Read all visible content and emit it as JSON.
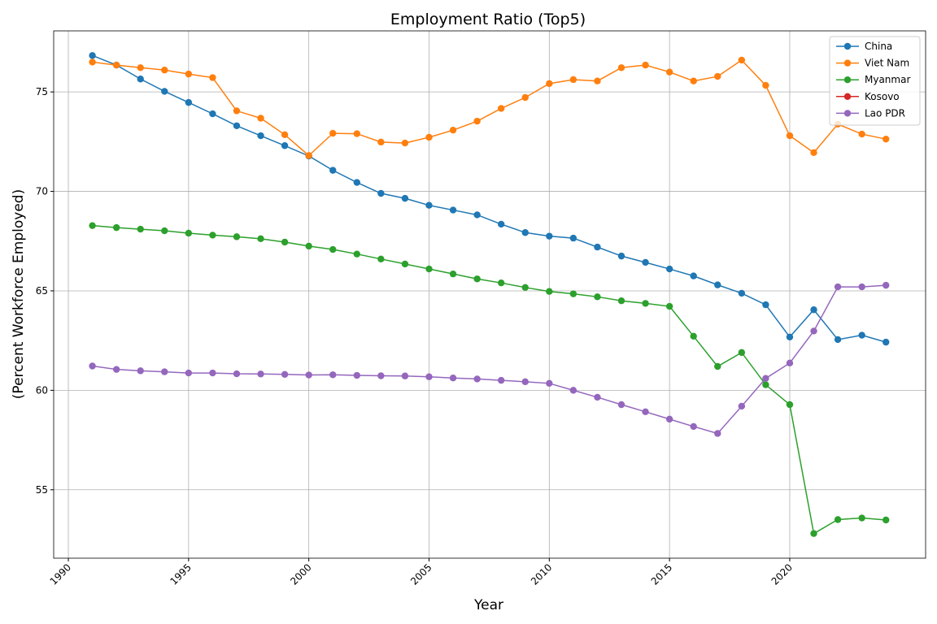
{
  "chart_data": {
    "type": "line",
    "title": "Employment Ratio (Top5)",
    "xlabel": "Year",
    "ylabel": "(Percent Workforce Employed)",
    "x": [
      1991,
      1992,
      1993,
      1994,
      1995,
      1996,
      1997,
      1998,
      1999,
      2000,
      2001,
      2002,
      2003,
      2004,
      2005,
      2006,
      2007,
      2008,
      2009,
      2010,
      2011,
      2012,
      2013,
      2014,
      2015,
      2016,
      2017,
      2018,
      2019,
      2020,
      2021,
      2022,
      2023,
      2024
    ],
    "series": [
      {
        "name": "China",
        "color": "#1f77b4",
        "values": [
          76.83,
          76.35,
          75.65,
          75.03,
          74.47,
          73.9,
          73.3,
          72.8,
          72.3,
          71.78,
          71.06,
          70.45,
          69.9,
          69.65,
          69.3,
          69.06,
          68.82,
          68.35,
          67.93,
          67.75,
          67.65,
          67.2,
          66.75,
          66.43,
          66.1,
          65.75,
          65.3,
          64.88,
          64.3,
          62.68,
          64.05,
          62.55,
          62.77,
          62.42
        ]
      },
      {
        "name": "Viet Nam",
        "color": "#ff7f0e",
        "values": [
          76.5,
          76.35,
          76.22,
          76.1,
          75.9,
          75.72,
          74.05,
          73.68,
          72.85,
          71.8,
          72.92,
          72.9,
          72.48,
          72.43,
          72.72,
          73.08,
          73.53,
          74.17,
          74.72,
          75.42,
          75.62,
          75.55,
          76.22,
          76.35,
          76.0,
          75.55,
          75.78,
          76.6,
          75.33,
          72.8,
          71.95,
          73.38,
          72.88,
          72.63
        ]
      },
      {
        "name": "Myanmar",
        "color": "#2ca02c",
        "values": [
          68.28,
          68.18,
          68.1,
          68.02,
          67.9,
          67.8,
          67.72,
          67.62,
          67.45,
          67.25,
          67.08,
          66.85,
          66.6,
          66.35,
          66.1,
          65.85,
          65.6,
          65.4,
          65.17,
          64.97,
          64.85,
          64.7,
          64.5,
          64.37,
          64.22,
          62.72,
          61.2,
          61.9,
          60.28,
          59.28,
          52.8,
          53.5,
          53.58,
          53.48
        ]
      },
      {
        "name": "Kosovo",
        "color": "#d62728",
        "values": [
          null,
          null,
          null,
          null,
          null,
          null,
          null,
          null,
          null,
          null,
          null,
          null,
          null,
          null,
          null,
          null,
          null,
          null,
          null,
          null,
          null,
          null,
          null,
          null,
          null,
          null,
          null,
          null,
          null,
          null,
          null,
          null,
          null,
          null
        ]
      },
      {
        "name": "Lao PDR",
        "color": "#9467bd",
        "values": [
          61.22,
          61.05,
          60.98,
          60.93,
          60.87,
          60.87,
          60.83,
          60.82,
          60.8,
          60.77,
          60.78,
          60.75,
          60.73,
          60.72,
          60.68,
          60.62,
          60.57,
          60.5,
          60.43,
          60.35,
          60.0,
          59.65,
          59.28,
          58.92,
          58.55,
          58.18,
          57.83,
          59.2,
          60.6,
          61.37,
          62.98,
          65.2,
          65.2,
          65.28
        ]
      }
    ],
    "xlim": [
      1989.39,
      2025.65
    ],
    "xticks": [
      1990,
      1995,
      2000,
      2005,
      2010,
      2015,
      2020
    ],
    "ylim": [
      51.56,
      78.07
    ],
    "yticks": [
      55,
      60,
      65,
      70,
      75
    ],
    "grid": true,
    "legend": "upper right"
  }
}
